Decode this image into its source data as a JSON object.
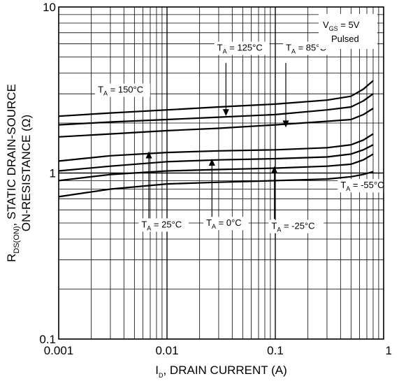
{
  "chart_data": {
    "type": "line",
    "title": "",
    "x_scale": "log",
    "y_scale": "log",
    "xlim": [
      0.001,
      1
    ],
    "ylim": [
      0.1,
      10
    ],
    "grid": true,
    "xlabel": {
      "pre": "I",
      "sub": "D",
      "post": ", DRAIN CURRENT (A)"
    },
    "ylabel": {
      "line1_pre": "R",
      "line1_sub": "DS(ON)",
      "line1_post": ", STATIC DRAIN-SOURCE",
      "line2": "ON-RESISTANCE  (Ω)"
    },
    "x_tick_labels": [
      {
        "value": 0.001,
        "label": "0.001"
      },
      {
        "value": 0.01,
        "label": "0.01"
      },
      {
        "value": 0.1,
        "label": "0.1"
      },
      {
        "value": 1,
        "label": "1"
      }
    ],
    "y_tick_labels": [
      {
        "value": 0.1,
        "label": "0.1"
      },
      {
        "value": 1,
        "label": "1"
      },
      {
        "value": 10,
        "label": "10"
      }
    ],
    "condition_box": {
      "line1_pre": "V",
      "line1_sub": "GS",
      "line1_post": " = 5V",
      "line2": "Pulsed"
    },
    "series": [
      {
        "name": "150°C",
        "x": [
          0.001,
          0.003,
          0.01,
          0.03,
          0.1,
          0.3,
          0.5,
          0.65,
          0.8
        ],
        "y": [
          2.2,
          2.3,
          2.4,
          2.5,
          2.6,
          2.75,
          2.9,
          3.2,
          3.6
        ]
      },
      {
        "name": "125°C",
        "x": [
          0.001,
          0.003,
          0.01,
          0.03,
          0.1,
          0.3,
          0.5,
          0.65,
          0.8
        ],
        "y": [
          1.95,
          2.03,
          2.1,
          2.17,
          2.25,
          2.4,
          2.5,
          2.72,
          3.0
        ]
      },
      {
        "name": "85°C",
        "x": [
          0.001,
          0.003,
          0.01,
          0.03,
          0.1,
          0.3,
          0.5,
          0.65,
          0.8
        ],
        "y": [
          1.65,
          1.72,
          1.8,
          1.86,
          1.95,
          2.05,
          2.1,
          2.25,
          2.45
        ]
      },
      {
        "name": "25°C",
        "x": [
          0.001,
          0.003,
          0.01,
          0.03,
          0.1,
          0.3,
          0.5,
          0.65,
          0.8
        ],
        "y": [
          1.18,
          1.27,
          1.33,
          1.36,
          1.38,
          1.42,
          1.48,
          1.58,
          1.72
        ]
      },
      {
        "name": "0°C",
        "x": [
          0.001,
          0.003,
          0.01,
          0.03,
          0.1,
          0.3,
          0.5,
          0.65,
          0.8
        ],
        "y": [
          1.03,
          1.1,
          1.17,
          1.2,
          1.22,
          1.25,
          1.3,
          1.38,
          1.48
        ]
      },
      {
        "name": "-25°C",
        "x": [
          0.001,
          0.003,
          0.01,
          0.03,
          0.1,
          0.3,
          0.5,
          0.65,
          0.8
        ],
        "y": [
          0.9,
          0.98,
          1.03,
          1.05,
          1.07,
          1.1,
          1.13,
          1.2,
          1.3
        ]
      },
      {
        "name": "-55°C",
        "x": [
          0.001,
          0.003,
          0.01,
          0.03,
          0.1,
          0.3,
          0.5,
          0.65,
          0.8
        ],
        "y": [
          0.72,
          0.8,
          0.86,
          0.88,
          0.9,
          0.92,
          0.95,
          0.98,
          1.02
        ]
      }
    ],
    "annotations": [
      {
        "series": "150°C",
        "pre": "T",
        "sub": "A",
        "post": " = 150°C",
        "label_at": [
          0.0023,
          3.05
        ],
        "arrow_from": null,
        "arrow_to": null
      },
      {
        "series": "125°C",
        "pre": "T",
        "sub": "A",
        "post": " = 125°C",
        "label_at": [
          0.029,
          5.45
        ],
        "arrow_from": [
          0.035,
          4.6
        ],
        "arrow_to": [
          0.035,
          2.2
        ]
      },
      {
        "series": "85°C",
        "pre": "T",
        "sub": "A",
        "post": " = 85°C",
        "label_at": [
          0.125,
          5.45
        ],
        "arrow_from": [
          0.125,
          4.6
        ],
        "arrow_to": [
          0.125,
          1.88
        ]
      },
      {
        "series": "25°C",
        "pre": "T",
        "sub": "A",
        "post": " = 25°C",
        "label_at": [
          0.0058,
          0.47
        ],
        "arrow_from": [
          0.0068,
          0.53
        ],
        "arrow_to": [
          0.0068,
          1.35
        ]
      },
      {
        "series": "0°C",
        "pre": "T",
        "sub": "A",
        "post": " = 0°C",
        "label_at": [
          0.023,
          0.48
        ],
        "arrow_from": [
          0.026,
          0.53
        ],
        "arrow_to": [
          0.026,
          1.22
        ]
      },
      {
        "series": "-25°C",
        "pre": "T",
        "sub": "A",
        "post": " = -25°C",
        "label_at": [
          0.092,
          0.46
        ],
        "arrow_from": [
          0.098,
          0.53
        ],
        "arrow_to": [
          0.098,
          1.1
        ]
      },
      {
        "series": "-55°C",
        "pre": "T",
        "sub": "A",
        "post": " = -55°C",
        "label_at": [
          0.4,
          0.81
        ],
        "arrow_from": null,
        "arrow_to": null
      }
    ]
  }
}
